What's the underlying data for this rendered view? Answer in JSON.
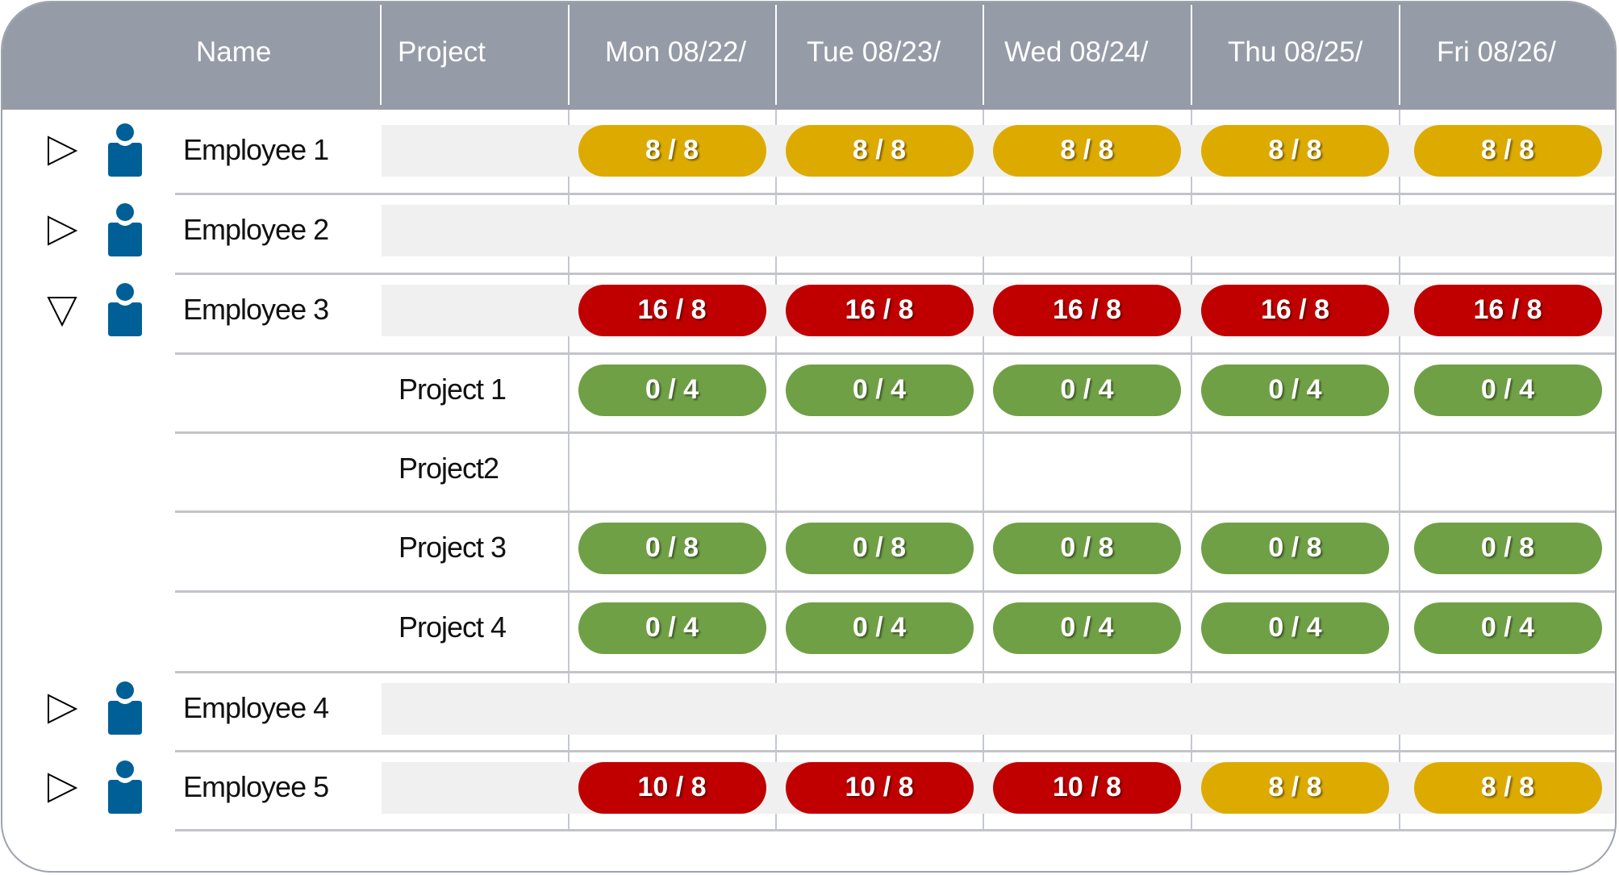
{
  "colors": {
    "header": "#959ba7",
    "over": "#c00000",
    "full": "#ddab00",
    "under": "#70a046",
    "icon": "#005f96"
  },
  "header": {
    "name": "Name",
    "project": "Project",
    "days": [
      "Mon 08/22/",
      "Tue 08/23/",
      "Wed 08/24/",
      "Thu 08/25/",
      "Fri 08/26/"
    ]
  },
  "rows": [
    {
      "type": "employee",
      "name": "Employee 1",
      "expanded": false,
      "toggle_icon": "expand-right-triangle-icon",
      "cells": [
        {
          "text": "8 / 8",
          "status": "yellow"
        },
        {
          "text": "8 / 8",
          "status": "yellow"
        },
        {
          "text": "8 / 8",
          "status": "yellow"
        },
        {
          "text": "8 / 8",
          "status": "yellow"
        },
        {
          "text": "8 / 8",
          "status": "yellow"
        }
      ]
    },
    {
      "type": "employee",
      "name": "Employee 2",
      "expanded": false,
      "toggle_icon": "expand-right-triangle-icon",
      "cells": [
        null,
        null,
        null,
        null,
        null
      ]
    },
    {
      "type": "employee",
      "name": "Employee 3",
      "expanded": true,
      "toggle_icon": "collapse-down-triangle-icon",
      "cells": [
        {
          "text": "16 / 8",
          "status": "red"
        },
        {
          "text": "16 / 8",
          "status": "red"
        },
        {
          "text": "16 / 8",
          "status": "red"
        },
        {
          "text": "16 / 8",
          "status": "red"
        },
        {
          "text": "16 / 8",
          "status": "red"
        }
      ]
    },
    {
      "type": "project",
      "name": "Project 1",
      "cells": [
        {
          "text": "0 / 4",
          "status": "green"
        },
        {
          "text": "0 / 4",
          "status": "green"
        },
        {
          "text": "0 / 4",
          "status": "green"
        },
        {
          "text": "0 / 4",
          "status": "green"
        },
        {
          "text": "0 / 4",
          "status": "green"
        }
      ]
    },
    {
      "type": "project",
      "name": "Project2",
      "cells": [
        null,
        null,
        null,
        null,
        null
      ]
    },
    {
      "type": "project",
      "name": "Project 3",
      "cells": [
        {
          "text": "0 / 8",
          "status": "green"
        },
        {
          "text": "0 / 8",
          "status": "green"
        },
        {
          "text": "0 / 8",
          "status": "green"
        },
        {
          "text": "0 / 8",
          "status": "green"
        },
        {
          "text": "0 / 8",
          "status": "green"
        }
      ]
    },
    {
      "type": "project",
      "name": "Project 4",
      "cells": [
        {
          "text": "0 / 4",
          "status": "green"
        },
        {
          "text": "0 / 4",
          "status": "green"
        },
        {
          "text": "0 / 4",
          "status": "green"
        },
        {
          "text": "0 / 4",
          "status": "green"
        },
        {
          "text": "0 / 4",
          "status": "green"
        }
      ]
    },
    {
      "type": "employee",
      "name": "Employee 4",
      "expanded": false,
      "toggle_icon": "expand-right-triangle-icon",
      "cells": [
        null,
        null,
        null,
        null,
        null
      ]
    },
    {
      "type": "employee",
      "name": "Employee 5",
      "expanded": false,
      "toggle_icon": "expand-right-triangle-icon",
      "cells": [
        {
          "text": "10 / 8",
          "status": "red"
        },
        {
          "text": "10 / 8",
          "status": "red"
        },
        {
          "text": "10 / 8",
          "status": "red"
        },
        {
          "text": "8 / 8",
          "status": "yellow"
        },
        {
          "text": "8 / 8",
          "status": "yellow"
        }
      ]
    }
  ]
}
